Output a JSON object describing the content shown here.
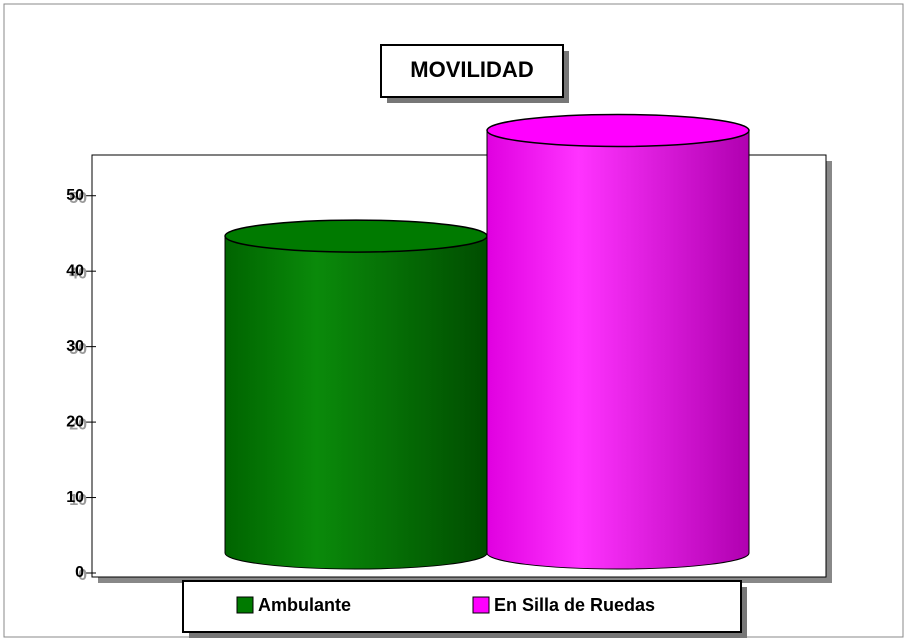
{
  "chart_data": {
    "type": "cylinder-bar",
    "title": "MOVILIDAD",
    "categories": [
      null
    ],
    "series": [
      {
        "name": "Ambulante",
        "color": "#007a00",
        "values": [
          42
        ]
      },
      {
        "name": "En Silla de Ruedas",
        "color": "#ff00ff",
        "values": [
          56
        ]
      }
    ],
    "ylim": [
      0,
      55
    ],
    "yticks": [
      0,
      10,
      20,
      30,
      40,
      50
    ],
    "grid": false,
    "legend": "bottom"
  }
}
